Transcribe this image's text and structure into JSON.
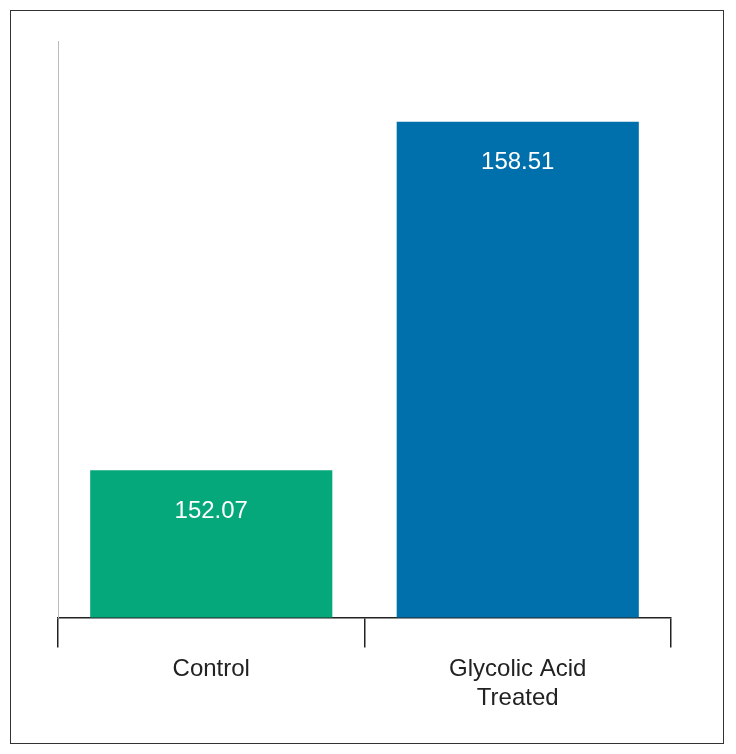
{
  "chart_data": {
    "type": "bar",
    "categories": [
      "Control",
      "Glycolic Acid\nTreated"
    ],
    "values": [
      152.07,
      158.51
    ],
    "colors": [
      "#05a87a",
      "#0070ad"
    ],
    "ylim": [
      149.35,
      160
    ],
    "yticks": [],
    "grid": false,
    "data_labels": true,
    "tick_labels": "x"
  }
}
